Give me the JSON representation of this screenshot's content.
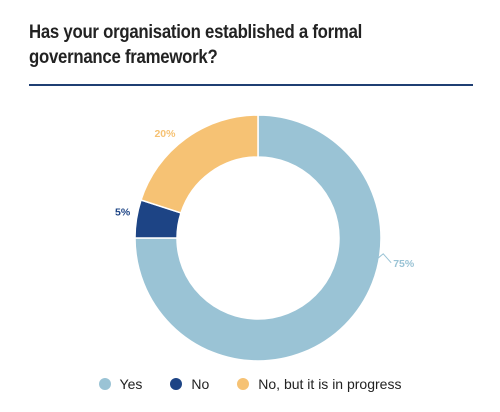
{
  "header": {
    "title": "Has your organisation established a formal governance framework?"
  },
  "chart_data": {
    "type": "pie",
    "variant": "donut",
    "title": "Has your organisation established a formal governance framework?",
    "slices": [
      {
        "label": "Yes",
        "value": 75,
        "display": "75%",
        "color": "#9ac3d5"
      },
      {
        "label": "No",
        "value": 5,
        "display": "5%",
        "color": "#1d4485"
      },
      {
        "label": "No, but it is in progress",
        "value": 20,
        "display": "20%",
        "color": "#f6c274"
      }
    ],
    "legend_position": "bottom"
  }
}
